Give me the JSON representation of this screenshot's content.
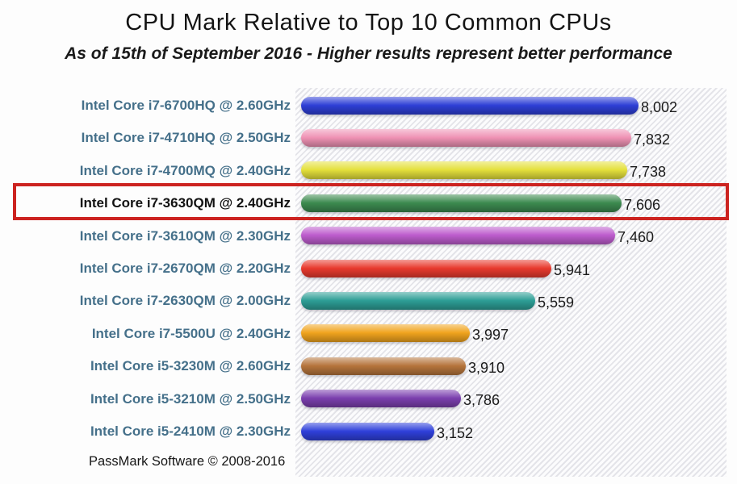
{
  "title": "CPU Mark Relative to Top 10 Common CPUs",
  "subtitle": "As of 15th of September 2016 - Higher results represent better performance",
  "footer": "PassMark Software © 2008-2016",
  "colors": {
    "label_text": "#45708a",
    "highlight_label_text": "#111111",
    "value_text": "#1b1b1b",
    "highlight_border": "#cc2320"
  },
  "chart_data": {
    "type": "bar",
    "orientation": "horizontal",
    "title": "CPU Mark Relative to Top 10 Common CPUs",
    "subtitle": "As of 15th of September 2016 - Higher results represent better performance",
    "categories": [
      "Intel Core i7-6700HQ @ 2.60GHz",
      "Intel Core i7-4710HQ @ 2.50GHz",
      "Intel Core i7-4700MQ @ 2.40GHz",
      "Intel Core i7-3630QM @ 2.40GHz",
      "Intel Core i7-3610QM @ 2.30GHz",
      "Intel Core i7-2670QM @ 2.20GHz",
      "Intel Core i7-2630QM @ 2.00GHz",
      "Intel Core i7-5500U @ 2.40GHz",
      "Intel Core i5-3230M @ 2.60GHz",
      "Intel Core i5-3210M @ 2.50GHz",
      "Intel Core i5-2410M @ 2.30GHz"
    ],
    "values": [
      8002,
      7832,
      7738,
      7606,
      7460,
      5941,
      5559,
      3997,
      3910,
      3786,
      3152
    ],
    "value_labels": [
      "8,002",
      "7,832",
      "7,738",
      "7,606",
      "7,460",
      "5,941",
      "5,559",
      "3,997",
      "3,910",
      "3,786",
      "3,152"
    ],
    "bar_colors": [
      "#2e3fd6",
      "#ef92b4",
      "#e4e03c",
      "#3c8a4f",
      "#bd5ccd",
      "#e83a2e",
      "#2d9e96",
      "#f0a41e",
      "#b5743c",
      "#7b3fae",
      "#2f40da"
    ],
    "highlight_index": 3,
    "highlighted_category": "Intel Core i7-3630QM @ 2.40GHz",
    "xlim": [
      0,
      8800
    ],
    "grid": false,
    "legend": false,
    "plot_background": "light-gray-diagonal-hatch",
    "annotation": "PassMark Software © 2008-2016"
  }
}
